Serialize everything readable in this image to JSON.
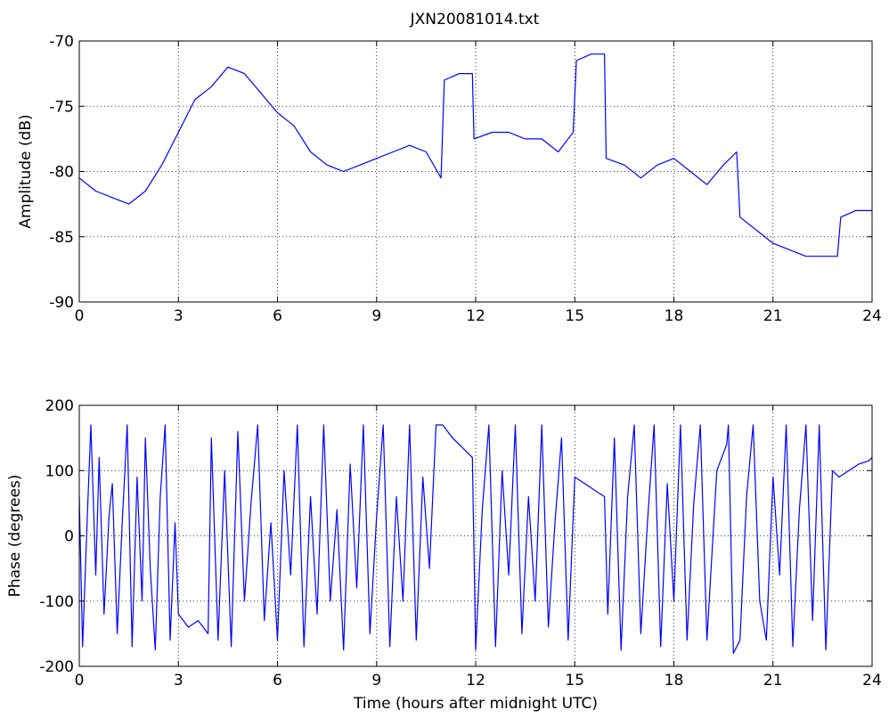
{
  "figure": {
    "title": "JXN20081014.txt",
    "line_color": "#0000ff"
  },
  "chart_data": [
    {
      "type": "line",
      "title": "JXN20081014.txt",
      "xlabel": "",
      "ylabel": "Amplitude (dB)",
      "xlim": [
        0,
        24
      ],
      "ylim": [
        -90,
        -70
      ],
      "xticks": [
        0,
        3,
        6,
        9,
        12,
        15,
        18,
        21,
        24
      ],
      "yticks": [
        -90,
        -85,
        -80,
        -75,
        -70
      ],
      "grid": true,
      "x": [
        0,
        0.5,
        1,
        1.5,
        2,
        2.5,
        3,
        3.5,
        4,
        4.5,
        5,
        5.5,
        6,
        6.5,
        7,
        7.5,
        8,
        8.5,
        9,
        9.5,
        10,
        10.5,
        10.95,
        11.05,
        11.5,
        11.9,
        11.95,
        12.5,
        13,
        13.5,
        14,
        14.5,
        14.95,
        15.05,
        15.5,
        15.9,
        15.95,
        16.5,
        17,
        17.5,
        18,
        18.5,
        19,
        19.5,
        19.9,
        20.0,
        20.5,
        21,
        21.5,
        22,
        22.5,
        22.95,
        23.05,
        23.5,
        24
      ],
      "y": [
        -80.5,
        -81.5,
        -82,
        -82.5,
        -81.5,
        -79.5,
        -77,
        -74.5,
        -73.5,
        -72,
        -72.5,
        -74,
        -75.5,
        -76.5,
        -78.5,
        -79.5,
        -80,
        -79.5,
        -79,
        -78.5,
        -78,
        -78.5,
        -80.5,
        -73,
        -72.5,
        -72.5,
        -77.5,
        -77,
        -77,
        -77.5,
        -77.5,
        -78.5,
        -77,
        -71.5,
        -71,
        -71,
        -79,
        -79.5,
        -80.5,
        -79.5,
        -79,
        -80,
        -81,
        -79.5,
        -78.5,
        -83.5,
        -84.5,
        -85.5,
        -86,
        -86.5,
        -86.5,
        -86.5,
        -83.5,
        -83,
        -83
      ]
    },
    {
      "type": "line",
      "title": "",
      "xlabel": "Time (hours after midnight UTC)",
      "ylabel": "Phase (degrees)",
      "xlim": [
        0,
        24
      ],
      "ylim": [
        -200,
        200
      ],
      "xticks": [
        0,
        3,
        6,
        9,
        12,
        15,
        18,
        21,
        24
      ],
      "yticks": [
        -200,
        -100,
        0,
        100,
        200
      ],
      "grid": true,
      "x": [
        0,
        0.1,
        0.25,
        0.35,
        0.5,
        0.6,
        0.75,
        0.9,
        1.0,
        1.15,
        1.3,
        1.45,
        1.6,
        1.75,
        1.9,
        2.0,
        2.15,
        2.3,
        2.45,
        2.6,
        2.75,
        2.9,
        3.0,
        3.3,
        3.6,
        3.9,
        4.0,
        4.2,
        4.4,
        4.6,
        4.8,
        5.0,
        5.2,
        5.4,
        5.6,
        5.8,
        6.0,
        6.2,
        6.4,
        6.6,
        6.8,
        7.0,
        7.2,
        7.4,
        7.6,
        7.8,
        8.0,
        8.2,
        8.4,
        8.6,
        8.8,
        9.0,
        9.2,
        9.4,
        9.6,
        9.8,
        10.0,
        10.2,
        10.4,
        10.6,
        10.8,
        11.0,
        11.3,
        11.6,
        11.9,
        12.0,
        12.2,
        12.4,
        12.6,
        12.8,
        13.0,
        13.2,
        13.4,
        13.6,
        13.8,
        14.0,
        14.2,
        14.4,
        14.6,
        14.8,
        15.0,
        15.3,
        15.6,
        15.9,
        16.0,
        16.2,
        16.4,
        16.6,
        16.8,
        17.0,
        17.2,
        17.4,
        17.6,
        17.8,
        18.0,
        18.2,
        18.4,
        18.6,
        18.8,
        19.0,
        19.3,
        19.6,
        19.65,
        19.8,
        20.0,
        20.2,
        20.4,
        20.6,
        20.8,
        21.0,
        21.2,
        21.4,
        21.6,
        21.8,
        22.0,
        22.2,
        22.4,
        22.6,
        22.8,
        23.0,
        23.3,
        23.6,
        23.9,
        24
      ],
      "y": [
        60,
        -170,
        40,
        170,
        -60,
        120,
        -120,
        30,
        80,
        -150,
        20,
        170,
        -170,
        90,
        -100,
        150,
        -50,
        -175,
        60,
        170,
        -160,
        20,
        -120,
        -140,
        -130,
        -150,
        150,
        -160,
        100,
        -170,
        160,
        -100,
        50,
        170,
        -130,
        20,
        -160,
        100,
        -60,
        170,
        -170,
        60,
        -120,
        170,
        -100,
        40,
        -175,
        110,
        -80,
        170,
        -150,
        30,
        170,
        -170,
        60,
        -100,
        170,
        -160,
        90,
        -50,
        170,
        170,
        150,
        135,
        120,
        -175,
        40,
        170,
        -170,
        100,
        -60,
        170,
        -150,
        60,
        -100,
        170,
        -140,
        20,
        150,
        -160,
        90,
        80,
        70,
        60,
        -120,
        150,
        -175,
        60,
        170,
        -150,
        20,
        170,
        -170,
        80,
        -100,
        170,
        -160,
        50,
        170,
        -160,
        100,
        140,
        170,
        -180,
        -160,
        60,
        170,
        -100,
        -160,
        90,
        -60,
        170,
        -170,
        40,
        170,
        -130,
        170,
        -175,
        100,
        90,
        100,
        110,
        115,
        120
      ]
    }
  ]
}
